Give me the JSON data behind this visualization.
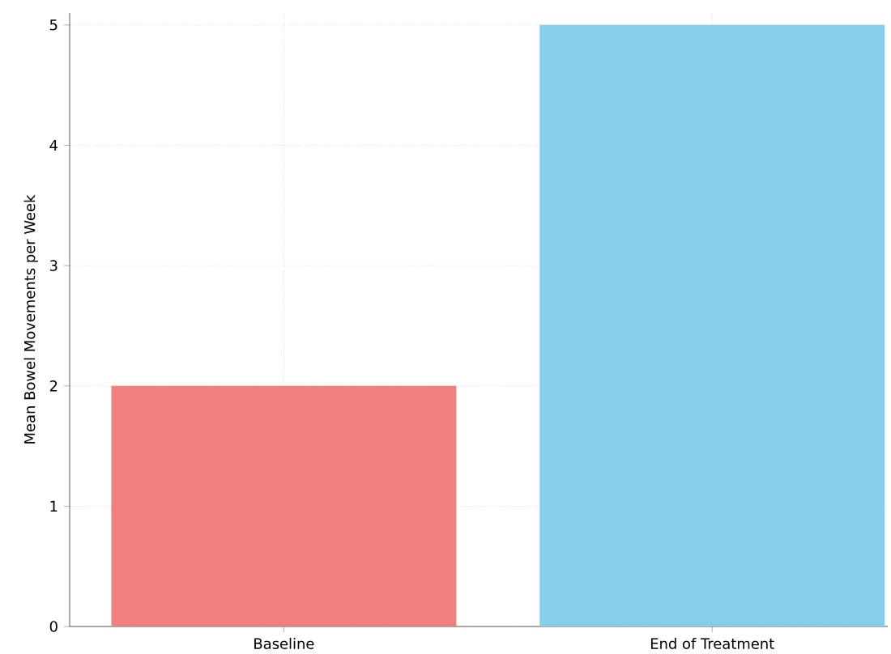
{
  "chart_data": {
    "type": "bar",
    "ylabel": "Mean Bowel Movements per Week",
    "categories": [
      "Baseline",
      "End of Treatment"
    ],
    "values": [
      2,
      5
    ],
    "colors": [
      "#f08080",
      "#87ceeb"
    ],
    "ylim": [
      0,
      5.1
    ],
    "yticks": [
      0,
      1,
      2,
      3,
      4,
      5
    ],
    "grid": true
  }
}
